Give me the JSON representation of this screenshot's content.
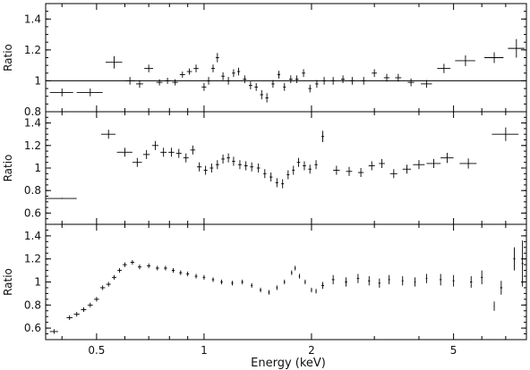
{
  "figure": {
    "xlabel": "Energy (keV)",
    "x_tick_labels": [
      "0.5",
      "1",
      "2",
      "5"
    ]
  },
  "chart_data": [
    {
      "type": "scatter",
      "title": "",
      "ylabel": "Ratio",
      "xlabel": "Energy (keV)",
      "x_scale": "log",
      "xlim": [
        0.36,
        8.0
      ],
      "ylim": [
        0.8,
        1.5
      ],
      "y_ticks": [
        0.8,
        1.0,
        1.2,
        1.4
      ],
      "y_tick_labels": [
        "0.8",
        "1",
        "1.2",
        "1.4"
      ],
      "reference_line": 1.0,
      "series": [
        {
          "points": [
            [
              0.4,
              0.925,
              0.03,
              0.025
            ],
            [
              0.48,
              0.925,
              0.04,
              0.025
            ],
            [
              0.56,
              1.12,
              0.03,
              0.04
            ],
            [
              0.62,
              1.0,
              0.02,
              0.025
            ],
            [
              0.66,
              0.98,
              0.015,
              0.025
            ],
            [
              0.7,
              1.08,
              0.02,
              0.025
            ],
            [
              0.75,
              0.99,
              0.015,
              0.02
            ],
            [
              0.79,
              1.0,
              0.015,
              0.02
            ],
            [
              0.83,
              0.99,
              0.015,
              0.02
            ],
            [
              0.87,
              1.04,
              0.015,
              0.02
            ],
            [
              0.91,
              1.06,
              0.015,
              0.02
            ],
            [
              0.95,
              1.08,
              0.015,
              0.025
            ],
            [
              1.0,
              0.96,
              0.015,
              0.025
            ],
            [
              1.03,
              1.0,
              0.012,
              0.025
            ],
            [
              1.06,
              1.08,
              0.012,
              0.025
            ],
            [
              1.09,
              1.15,
              0.012,
              0.03
            ],
            [
              1.13,
              1.03,
              0.012,
              0.025
            ],
            [
              1.17,
              1.0,
              0.012,
              0.025
            ],
            [
              1.21,
              1.05,
              0.012,
              0.025
            ],
            [
              1.25,
              1.06,
              0.012,
              0.025
            ],
            [
              1.3,
              1.01,
              0.015,
              0.025
            ],
            [
              1.35,
              0.97,
              0.015,
              0.025
            ],
            [
              1.4,
              0.96,
              0.015,
              0.025
            ],
            [
              1.45,
              0.91,
              0.015,
              0.03
            ],
            [
              1.5,
              0.89,
              0.015,
              0.03
            ],
            [
              1.56,
              0.98,
              0.015,
              0.025
            ],
            [
              1.62,
              1.04,
              0.015,
              0.025
            ],
            [
              1.68,
              0.96,
              0.015,
              0.025
            ],
            [
              1.75,
              1.01,
              0.02,
              0.025
            ],
            [
              1.82,
              1.01,
              0.02,
              0.025
            ],
            [
              1.9,
              1.05,
              0.02,
              0.025
            ],
            [
              1.98,
              0.95,
              0.02,
              0.025
            ],
            [
              2.07,
              0.98,
              0.02,
              0.025
            ],
            [
              2.17,
              1.0,
              0.025,
              0.025
            ],
            [
              2.3,
              1.0,
              0.03,
              0.025
            ],
            [
              2.45,
              1.01,
              0.03,
              0.025
            ],
            [
              2.6,
              1.0,
              0.04,
              0.025
            ],
            [
              2.8,
              1.0,
              0.04,
              0.025
            ],
            [
              3.0,
              1.05,
              0.05,
              0.025
            ],
            [
              3.25,
              1.02,
              0.06,
              0.025
            ],
            [
              3.5,
              1.02,
              0.07,
              0.025
            ],
            [
              3.8,
              0.99,
              0.08,
              0.025
            ],
            [
              4.2,
              0.98,
              0.15,
              0.025
            ],
            [
              4.7,
              1.08,
              0.2,
              0.03
            ],
            [
              5.4,
              1.13,
              0.35,
              0.035
            ],
            [
              6.5,
              1.15,
              0.4,
              0.035
            ],
            [
              7.5,
              1.21,
              0.4,
              0.06
            ]
          ]
        }
      ]
    },
    {
      "type": "scatter",
      "title": "",
      "ylabel": "Ratio",
      "xlabel": "Energy (keV)",
      "x_scale": "log",
      "xlim": [
        0.36,
        8.0
      ],
      "ylim": [
        0.5,
        1.5
      ],
      "y_ticks": [
        0.6,
        0.8,
        1.0,
        1.2,
        1.4
      ],
      "y_tick_labels": [
        "0.6",
        "0.8",
        "1",
        "1.2",
        "1.4"
      ],
      "series": [
        {
          "points": [
            [
              0.4,
              0.73,
              0.04,
              0.005
            ],
            [
              0.54,
              1.3,
              0.025,
              0.04
            ],
            [
              0.6,
              1.14,
              0.03,
              0.04
            ],
            [
              0.65,
              1.05,
              0.02,
              0.04
            ],
            [
              0.69,
              1.12,
              0.015,
              0.04
            ],
            [
              0.73,
              1.2,
              0.015,
              0.04
            ],
            [
              0.77,
              1.14,
              0.015,
              0.04
            ],
            [
              0.81,
              1.14,
              0.015,
              0.04
            ],
            [
              0.85,
              1.13,
              0.015,
              0.04
            ],
            [
              0.89,
              1.09,
              0.015,
              0.04
            ],
            [
              0.93,
              1.16,
              0.015,
              0.04
            ],
            [
              0.97,
              1.01,
              0.015,
              0.04
            ],
            [
              1.01,
              0.98,
              0.012,
              0.04
            ],
            [
              1.05,
              1.0,
              0.012,
              0.04
            ],
            [
              1.09,
              1.03,
              0.012,
              0.04
            ],
            [
              1.13,
              1.08,
              0.012,
              0.04
            ],
            [
              1.17,
              1.09,
              0.012,
              0.04
            ],
            [
              1.21,
              1.06,
              0.012,
              0.04
            ],
            [
              1.26,
              1.03,
              0.015,
              0.04
            ],
            [
              1.31,
              1.02,
              0.015,
              0.04
            ],
            [
              1.36,
              1.01,
              0.015,
              0.04
            ],
            [
              1.42,
              1.0,
              0.015,
              0.04
            ],
            [
              1.48,
              0.95,
              0.015,
              0.04
            ],
            [
              1.54,
              0.92,
              0.015,
              0.04
            ],
            [
              1.6,
              0.87,
              0.015,
              0.04
            ],
            [
              1.66,
              0.86,
              0.015,
              0.04
            ],
            [
              1.72,
              0.94,
              0.015,
              0.04
            ],
            [
              1.78,
              0.98,
              0.015,
              0.04
            ],
            [
              1.84,
              1.05,
              0.02,
              0.04
            ],
            [
              1.91,
              1.02,
              0.02,
              0.04
            ],
            [
              1.98,
              0.99,
              0.02,
              0.04
            ],
            [
              2.06,
              1.03,
              0.02,
              0.04
            ],
            [
              2.15,
              1.28,
              0.02,
              0.05
            ],
            [
              2.35,
              0.98,
              0.05,
              0.04
            ],
            [
              2.55,
              0.97,
              0.05,
              0.04
            ],
            [
              2.75,
              0.96,
              0.05,
              0.04
            ],
            [
              2.95,
              1.02,
              0.06,
              0.04
            ],
            [
              3.15,
              1.04,
              0.06,
              0.04
            ],
            [
              3.4,
              0.95,
              0.08,
              0.04
            ],
            [
              3.7,
              0.99,
              0.1,
              0.04
            ],
            [
              4.0,
              1.03,
              0.15,
              0.04
            ],
            [
              4.4,
              1.04,
              0.2,
              0.04
            ],
            [
              4.8,
              1.09,
              0.2,
              0.045
            ],
            [
              5.5,
              1.04,
              0.3,
              0.045
            ],
            [
              7.0,
              1.3,
              0.6,
              0.06
            ]
          ]
        }
      ]
    },
    {
      "type": "scatter",
      "title": "",
      "ylabel": "Ratio",
      "xlabel": "Energy (keV)",
      "x_scale": "log",
      "xlim": [
        0.36,
        8.0
      ],
      "ylim": [
        0.5,
        1.5
      ],
      "y_ticks": [
        0.6,
        0.8,
        1.0,
        1.2,
        1.4
      ],
      "y_tick_labels": [
        "0.6",
        "0.8",
        "1",
        "1.2",
        "1.4"
      ],
      "series": [
        {
          "points": [
            [
              0.38,
              0.57,
              0.01,
              0.02
            ],
            [
              0.42,
              0.69,
              0.008,
              0.02
            ],
            [
              0.44,
              0.72,
              0.008,
              0.02
            ],
            [
              0.46,
              0.76,
              0.008,
              0.02
            ],
            [
              0.48,
              0.8,
              0.008,
              0.02
            ],
            [
              0.5,
              0.85,
              0.008,
              0.02
            ],
            [
              0.52,
              0.95,
              0.008,
              0.02
            ],
            [
              0.54,
              0.98,
              0.008,
              0.02
            ],
            [
              0.56,
              1.04,
              0.008,
              0.02
            ],
            [
              0.58,
              1.1,
              0.008,
              0.02
            ],
            [
              0.6,
              1.15,
              0.008,
              0.02
            ],
            [
              0.63,
              1.17,
              0.008,
              0.02
            ],
            [
              0.66,
              1.13,
              0.008,
              0.02
            ],
            [
              0.7,
              1.14,
              0.008,
              0.02
            ],
            [
              0.74,
              1.12,
              0.008,
              0.02
            ],
            [
              0.78,
              1.12,
              0.008,
              0.02
            ],
            [
              0.82,
              1.1,
              0.008,
              0.02
            ],
            [
              0.86,
              1.08,
              0.008,
              0.02
            ],
            [
              0.9,
              1.07,
              0.008,
              0.02
            ],
            [
              0.95,
              1.05,
              0.008,
              0.02
            ],
            [
              1.0,
              1.04,
              0.008,
              0.02
            ],
            [
              1.06,
              1.02,
              0.008,
              0.02
            ],
            [
              1.12,
              1.0,
              0.008,
              0.02
            ],
            [
              1.2,
              0.99,
              0.008,
              0.02
            ],
            [
              1.28,
              1.0,
              0.008,
              0.02
            ],
            [
              1.36,
              0.97,
              0.008,
              0.02
            ],
            [
              1.44,
              0.93,
              0.008,
              0.02
            ],
            [
              1.52,
              0.91,
              0.008,
              0.02
            ],
            [
              1.6,
              0.95,
              0.008,
              0.02
            ],
            [
              1.68,
              1.0,
              0.008,
              0.02
            ],
            [
              1.76,
              1.08,
              0.008,
              0.02
            ],
            [
              1.8,
              1.12,
              0.008,
              0.02
            ],
            [
              1.85,
              1.05,
              0.008,
              0.02
            ],
            [
              1.92,
              1.0,
              0.008,
              0.02
            ],
            [
              2.0,
              0.93,
              0.008,
              0.02
            ],
            [
              2.06,
              0.92,
              0.008,
              0.02
            ],
            [
              2.15,
              0.97,
              0.02,
              0.03
            ],
            [
              2.3,
              1.02,
              0.02,
              0.04
            ],
            [
              2.5,
              1.0,
              0.02,
              0.04
            ],
            [
              2.7,
              1.03,
              0.02,
              0.04
            ],
            [
              2.9,
              1.01,
              0.02,
              0.04
            ],
            [
              3.1,
              0.99,
              0.02,
              0.04
            ],
            [
              3.3,
              1.02,
              0.02,
              0.04
            ],
            [
              3.6,
              1.01,
              0.02,
              0.04
            ],
            [
              3.9,
              1.0,
              0.02,
              0.04
            ],
            [
              4.2,
              1.03,
              0.02,
              0.04
            ],
            [
              4.6,
              1.02,
              0.03,
              0.05
            ],
            [
              5.0,
              1.01,
              0.03,
              0.05
            ],
            [
              5.6,
              1.0,
              0.04,
              0.05
            ],
            [
              6.0,
              1.04,
              0.04,
              0.06
            ],
            [
              6.5,
              0.79,
              0.02,
              0.04
            ],
            [
              6.8,
              0.95,
              0.05,
              0.06
            ],
            [
              7.4,
              1.2,
              0.05,
              0.1
            ],
            [
              7.8,
              1.16,
              0.05,
              0.2
            ]
          ]
        }
      ]
    }
  ]
}
